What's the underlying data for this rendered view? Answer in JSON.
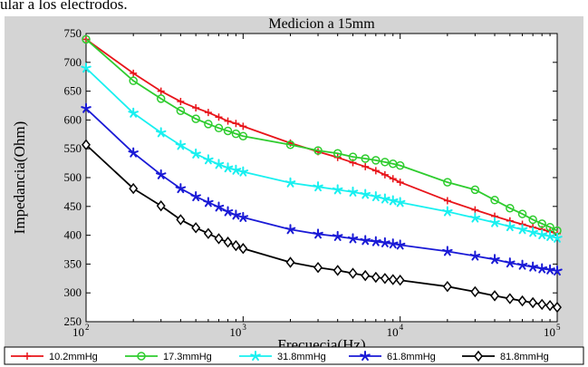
{
  "caption_fragment": "ular a los electrodos.",
  "chart_data": {
    "type": "line",
    "title": "Medicion a 15mm",
    "xlabel": "Frecuecia(Hz)",
    "ylabel": "Impedancia(Ohm)",
    "xscale": "log",
    "xlim": [
      100,
      100000
    ],
    "ylim": [
      250,
      750
    ],
    "xticks": [
      100,
      1000,
      10000,
      100000
    ],
    "xtick_labels": [
      [
        "10",
        "2"
      ],
      [
        "10",
        "3"
      ],
      [
        "10",
        "4"
      ],
      [
        "10",
        "5"
      ]
    ],
    "yticks": [
      250,
      300,
      350,
      400,
      450,
      500,
      550,
      600,
      650,
      700,
      750
    ],
    "grid": false,
    "legend_position": "bottom",
    "series": [
      {
        "name": "10.2mmHg",
        "color": "#e8141a",
        "marker": "plus",
        "x": [
          100,
          200,
          300,
          400,
          500,
          600,
          700,
          800,
          900,
          1000,
          2000,
          3000,
          4000,
          5000,
          6000,
          7000,
          8000,
          9000,
          10000,
          20000,
          30000,
          40000,
          50000,
          60000,
          70000,
          80000,
          90000,
          100000
        ],
        "values": [
          740,
          681,
          650,
          632,
          621,
          613,
          605,
          598,
          594,
          589,
          560,
          545,
          535,
          526,
          519,
          512,
          505,
          498,
          492,
          460,
          444,
          433,
          425,
          419,
          414,
          410,
          406,
          403
        ]
      },
      {
        "name": "17.3mmHg",
        "color": "#2ecc2e",
        "marker": "circle",
        "x": [
          100,
          200,
          300,
          400,
          500,
          600,
          700,
          800,
          900,
          1000,
          2000,
          3000,
          4000,
          5000,
          6000,
          7000,
          8000,
          9000,
          10000,
          20000,
          30000,
          40000,
          50000,
          60000,
          70000,
          80000,
          90000,
          100000
        ],
        "values": [
          740,
          668,
          637,
          616,
          602,
          593,
          586,
          581,
          576,
          572,
          557,
          547,
          542,
          536,
          533,
          530,
          527,
          524,
          521,
          492,
          479,
          461,
          447,
          437,
          427,
          420,
          414,
          408
        ]
      },
      {
        "name": "31.8mmHg",
        "color": "#19f0f0",
        "marker": "star",
        "x": [
          100,
          200,
          300,
          400,
          500,
          600,
          700,
          800,
          900,
          1000,
          2000,
          3000,
          4000,
          5000,
          6000,
          7000,
          8000,
          9000,
          10000,
          20000,
          30000,
          40000,
          50000,
          60000,
          70000,
          80000,
          90000,
          100000
        ],
        "values": [
          690,
          612,
          578,
          556,
          541,
          531,
          523,
          517,
          513,
          510,
          491,
          484,
          479,
          475,
          471,
          467,
          463,
          460,
          457,
          441,
          430,
          422,
          415,
          410,
          405,
          401,
          398,
          395
        ]
      },
      {
        "name": "61.8mmHg",
        "color": "#1a1ad6",
        "marker": "star",
        "x": [
          100,
          200,
          300,
          400,
          500,
          600,
          700,
          800,
          900,
          1000,
          2000,
          3000,
          4000,
          5000,
          6000,
          7000,
          8000,
          9000,
          10000,
          20000,
          30000,
          40000,
          50000,
          60000,
          70000,
          80000,
          90000,
          100000
        ],
        "values": [
          620,
          543,
          505,
          481,
          467,
          457,
          449,
          441,
          435,
          431,
          410,
          402,
          398,
          394,
          391,
          389,
          387,
          385,
          383,
          372,
          364,
          358,
          352,
          348,
          345,
          342,
          340,
          338
        ]
      },
      {
        "name": "81.8mmHg",
        "color": "#000000",
        "marker": "diamond",
        "x": [
          100,
          200,
          300,
          400,
          500,
          600,
          700,
          800,
          900,
          1000,
          2000,
          3000,
          4000,
          5000,
          6000,
          7000,
          8000,
          9000,
          10000,
          20000,
          30000,
          40000,
          50000,
          60000,
          70000,
          80000,
          90000,
          100000
        ],
        "values": [
          557,
          481,
          451,
          427,
          413,
          403,
          394,
          388,
          382,
          377,
          353,
          344,
          339,
          334,
          330,
          327,
          325,
          323,
          322,
          311,
          302,
          295,
          290,
          286,
          283,
          280,
          278,
          275
        ]
      }
    ]
  }
}
